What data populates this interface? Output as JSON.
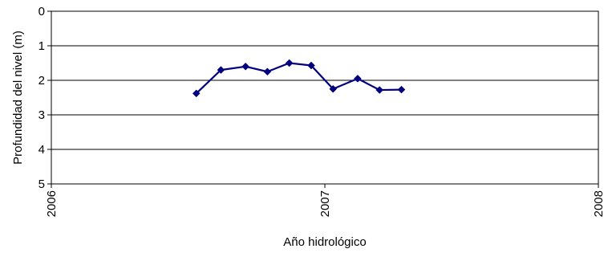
{
  "chart_data": {
    "type": "line",
    "title": "",
    "xlabel": "Año hidrológico",
    "ylabel": "Profundidad del nivel (m)",
    "xlim": [
      2006,
      2008
    ],
    "ylim": [
      0,
      5
    ],
    "y_inverted": true,
    "x_ticks": [
      2006,
      2007,
      2008
    ],
    "x_tick_labels": [
      "2006",
      "2007",
      "2008"
    ],
    "y_ticks": [
      0,
      1,
      2,
      3,
      4,
      5
    ],
    "y_tick_labels": [
      "0",
      "1",
      "2",
      "3",
      "4",
      "5"
    ],
    "grid": "horizontal",
    "legend": "none",
    "series": [
      {
        "color": "#000080",
        "marker": "diamond",
        "x": [
          2006.53,
          2006.62,
          2006.71,
          2006.79,
          2006.87,
          2006.95,
          2007.03,
          2007.12,
          2007.2,
          2007.28
        ],
        "y": [
          2.38,
          1.7,
          1.6,
          1.75,
          1.5,
          1.57,
          2.25,
          1.95,
          2.28,
          2.27
        ]
      }
    ]
  }
}
